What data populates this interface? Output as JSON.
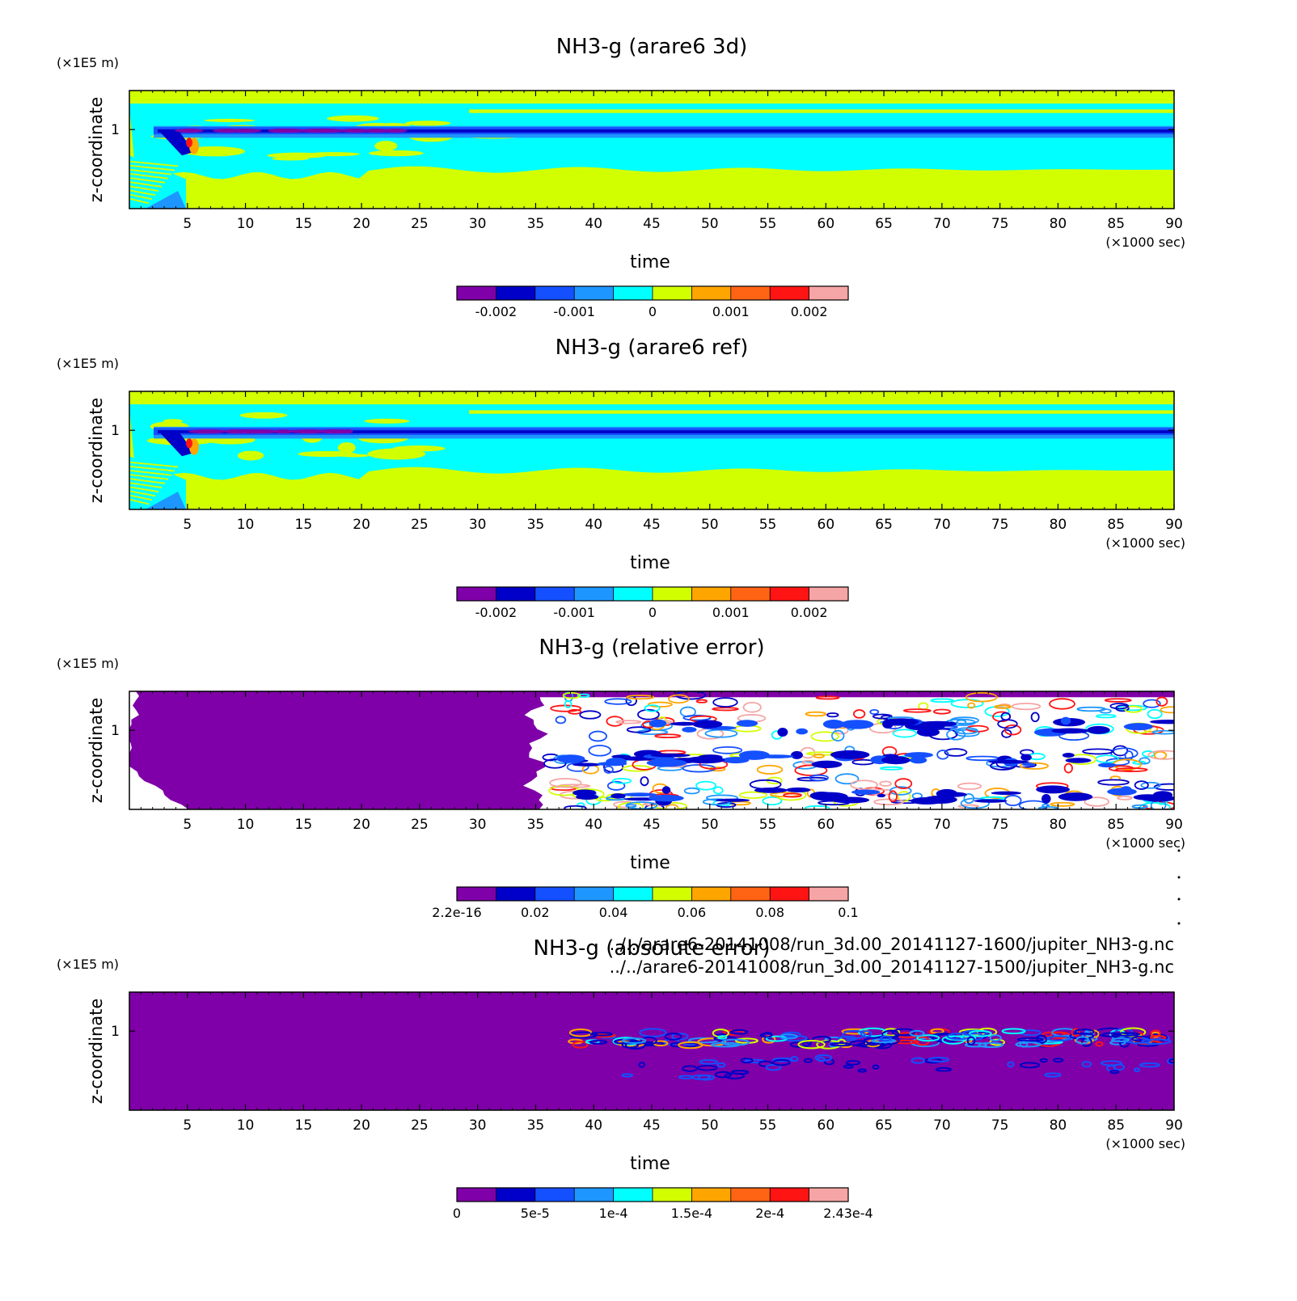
{
  "figure": {
    "file_paths": [
      "../../arare6-20141008/run_3d.00_20141127-1600/jupiter_NH3-g.nc",
      "../../arare6-20141008/run_3d.00_20141127-1500/jupiter_NH3-g.nc"
    ]
  },
  "chart_data": [
    {
      "type": "heatmap",
      "title": "NH3-g (arare6 3d)",
      "xlabel": "time",
      "ylabel": "z-coordinate",
      "x_unit": "(×1000 sec)",
      "y_unit": "(×1E5 m)",
      "xlim": [
        0,
        90
      ],
      "x_ticks": [
        5,
        10,
        15,
        20,
        25,
        30,
        35,
        40,
        45,
        50,
        55,
        60,
        65,
        70,
        75,
        80,
        85,
        90
      ],
      "y_ticks": [
        1
      ],
      "colorbar": {
        "colors": [
          "#7f00a8",
          "#0000c8",
          "#1450ff",
          "#1e96ff",
          "#00ffff",
          "#d2ff00",
          "#ffa500",
          "#ff6414",
          "#ff1414",
          "#f5a5a5"
        ],
        "tick_labels": [
          "-0.002",
          "-0.001",
          "0",
          "0.001",
          "0.002"
        ],
        "tick_positions": [
          1,
          3,
          5,
          7,
          9
        ]
      },
      "pattern": "field"
    },
    {
      "type": "heatmap",
      "title": "NH3-g (arare6 ref)",
      "xlabel": "time",
      "ylabel": "z-coordinate",
      "x_unit": "(×1000 sec)",
      "y_unit": "(×1E5 m)",
      "xlim": [
        0,
        90
      ],
      "x_ticks": [
        5,
        10,
        15,
        20,
        25,
        30,
        35,
        40,
        45,
        50,
        55,
        60,
        65,
        70,
        75,
        80,
        85,
        90
      ],
      "y_ticks": [
        1
      ],
      "colorbar": {
        "colors": [
          "#7f00a8",
          "#0000c8",
          "#1450ff",
          "#1e96ff",
          "#00ffff",
          "#d2ff00",
          "#ffa500",
          "#ff6414",
          "#ff1414",
          "#f5a5a5"
        ],
        "tick_labels": [
          "-0.002",
          "-0.001",
          "0",
          "0.001",
          "0.002"
        ],
        "tick_positions": [
          1,
          3,
          5,
          7,
          9
        ]
      },
      "pattern": "field"
    },
    {
      "type": "heatmap",
      "title": "NH3-g (relative error)",
      "xlabel": "time",
      "ylabel": "z-coordinate",
      "x_unit": "(×1000 sec)",
      "y_unit": "(×1E5 m)",
      "xlim": [
        0,
        90
      ],
      "x_ticks": [
        5,
        10,
        15,
        20,
        25,
        30,
        35,
        40,
        45,
        50,
        55,
        60,
        65,
        70,
        75,
        80,
        85,
        90
      ],
      "y_ticks": [
        1
      ],
      "colorbar": {
        "colors": [
          "#7f00a8",
          "#0000c8",
          "#1450ff",
          "#1e96ff",
          "#00ffff",
          "#d2ff00",
          "#ffa500",
          "#ff6414",
          "#ff1414",
          "#f5a5a5"
        ],
        "tick_labels": [
          "2.2e-16",
          "0.02",
          "0.04",
          "0.06",
          "0.08",
          "0.1"
        ],
        "tick_positions": [
          0,
          2,
          4,
          6,
          8,
          10
        ]
      },
      "pattern": "relative"
    },
    {
      "type": "heatmap",
      "title": "NH3-g (absolute error)",
      "xlabel": "time",
      "ylabel": "z-coordinate",
      "x_unit": "(×1000 sec)",
      "y_unit": "(×1E5 m)",
      "xlim": [
        0,
        90
      ],
      "x_ticks": [
        5,
        10,
        15,
        20,
        25,
        30,
        35,
        40,
        45,
        50,
        55,
        60,
        65,
        70,
        75,
        80,
        85,
        90
      ],
      "y_ticks": [
        1
      ],
      "colorbar": {
        "colors": [
          "#7f00a8",
          "#0000c8",
          "#1450ff",
          "#1e96ff",
          "#00ffff",
          "#d2ff00",
          "#ffa500",
          "#ff6414",
          "#ff1414",
          "#f5a5a5"
        ],
        "tick_labels": [
          "0",
          "5e-5",
          "1e-4",
          "1.5e-4",
          "2e-4",
          "2.43e-4"
        ],
        "tick_positions": [
          0,
          2,
          4,
          6,
          8,
          10
        ]
      },
      "pattern": "absolute"
    }
  ]
}
